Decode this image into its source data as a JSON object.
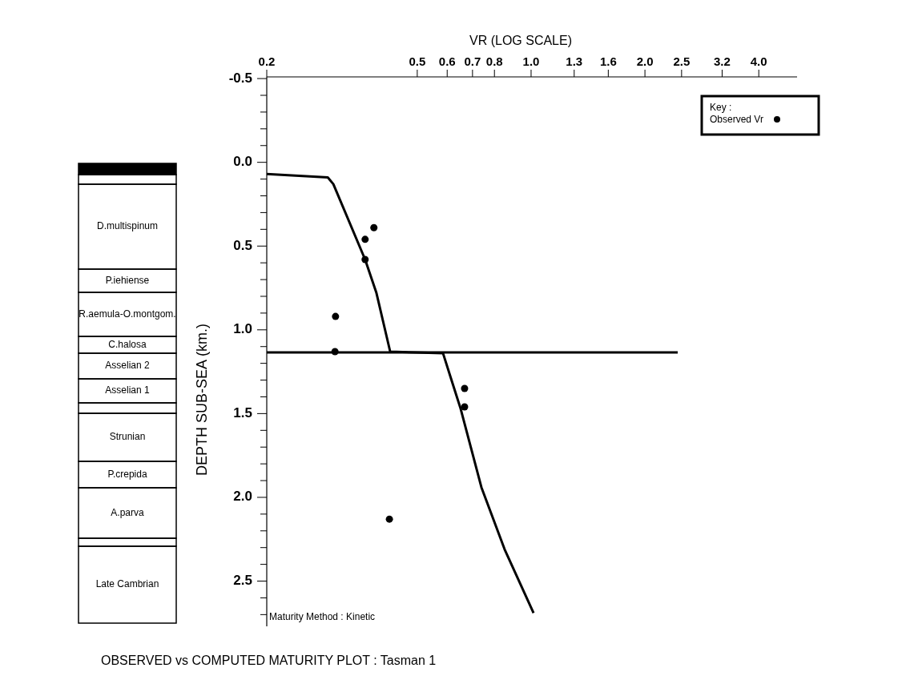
{
  "chart_data": {
    "type": "scatter",
    "title": "OBSERVED vs COMPUTED MATURITY PLOT : Tasman 1",
    "xlabel": "VR (LOG SCALE)",
    "ylabel": "DEPTH SUB-SEA (km.)",
    "legend_title": "Key :",
    "legend": "top right",
    "log": "x",
    "marker": "circle",
    "xlim": [
      0.2,
      5.05
    ],
    "xticks": [
      0.2,
      0.5,
      0.6,
      0.7,
      0.8,
      {
        "value": 1,
        "label": "1.0"
      },
      1.3,
      1.6,
      {
        "value": 2,
        "label": "2.0"
      },
      2.5,
      3.2,
      {
        "value": 4,
        "label": "4.0"
      }
    ],
    "ylim": [
      2.77,
      -0.51
    ],
    "yticks": [
      -0.5,
      {
        "value": -0.4,
        "label": null
      },
      {
        "value": -0.3,
        "label": null
      },
      {
        "value": -0.2,
        "label": null
      },
      {
        "value": -0.1,
        "label": null
      },
      {
        "value": 0,
        "label": "0.0"
      },
      {
        "value": 0.1,
        "label": null
      },
      {
        "value": 0.2,
        "label": null
      },
      {
        "value": 0.3,
        "label": null
      },
      {
        "value": 0.4,
        "label": null
      },
      0.5,
      {
        "value": 0.6,
        "label": null
      },
      {
        "value": 0.7,
        "label": null
      },
      {
        "value": 0.8,
        "label": null
      },
      {
        "value": 0.9,
        "label": null
      },
      {
        "value": 1,
        "label": "1.0"
      },
      {
        "value": 1.1,
        "label": null
      },
      {
        "value": 1.2,
        "label": null
      },
      {
        "value": 1.3,
        "label": null
      },
      {
        "value": 1.4,
        "label": null
      },
      1.5,
      {
        "value": 1.6,
        "label": null
      },
      {
        "value": 1.7,
        "label": null
      },
      {
        "value": 1.8,
        "label": null
      },
      {
        "value": 1.9,
        "label": null
      },
      {
        "value": 2,
        "label": "2.0"
      },
      {
        "value": 2.1,
        "label": null
      },
      {
        "value": 2.2,
        "label": null
      },
      {
        "value": 2.3,
        "label": null
      },
      {
        "value": 2.4,
        "label": null
      },
      2.5,
      {
        "value": 2.6,
        "label": null
      },
      {
        "value": 2.7,
        "label": null
      }
    ],
    "series": [
      {
        "name": "Observed Vr",
        "color": "#000000",
        "x": [
          0.384,
          0.364,
          0.364,
          0.304,
          0.303,
          0.667,
          0.667,
          0.422
        ],
        "values": [
          0.39,
          0.46,
          0.58,
          0.92,
          1.13,
          1.35,
          1.46,
          2.13
        ]
      },
      {
        "type": "line",
        "color": "#000000",
        "line_style": "solid",
        "marker": "none",
        "x": [
          0.2,
          0.29,
          0.3,
          0.364,
          0.39,
          0.424,
          0.585,
          0.62,
          0.651,
          0.739,
          0.851,
          1.015
        ],
        "values": [
          0.07,
          0.09,
          0.13,
          0.58,
          0.78,
          1.13,
          1.14,
          1.32,
          1.47,
          1.94,
          2.31,
          2.69
        ]
      }
    ],
    "ref_lines": [
      {
        "axis": "y",
        "value": 1.135,
        "color": "#000000"
      }
    ],
    "annotations": [
      "Maturity Method : Kinetic",
      "D.multispinum",
      "P.iehiense",
      "R.aemula-O.montgom.",
      "C.halosa",
      "Asselian 2",
      "Asselian 1",
      "Strunian",
      "P.crepida",
      "A.parva",
      "Late Cambrian"
    ]
  }
}
